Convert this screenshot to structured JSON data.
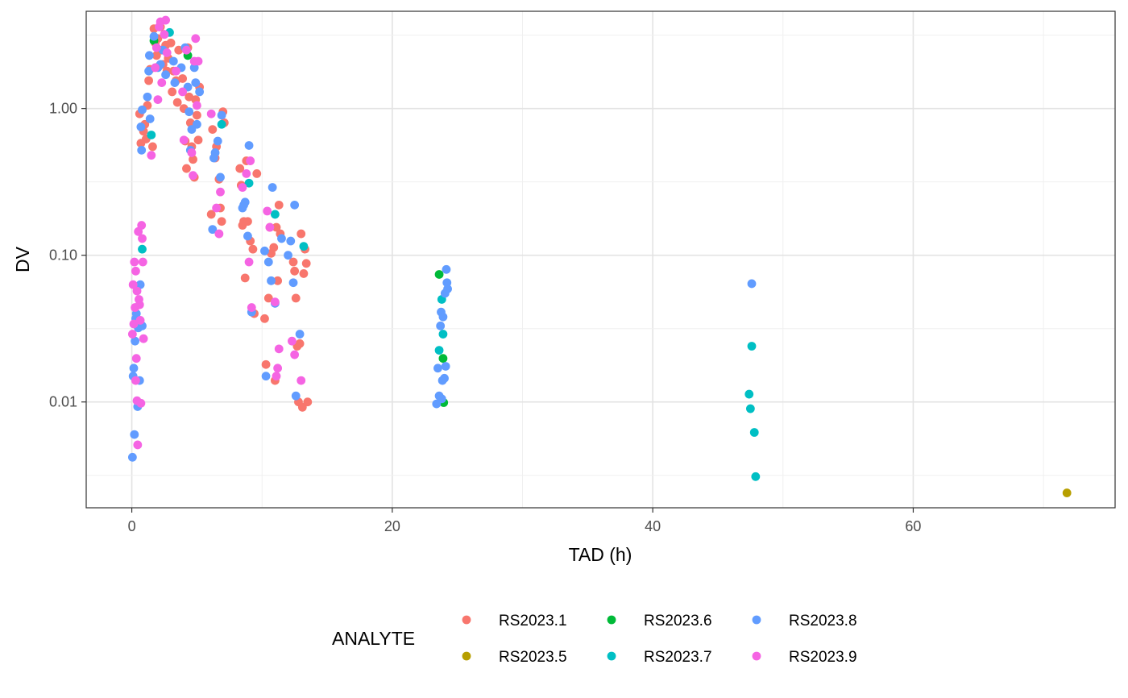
{
  "chart_data": {
    "type": "scatter",
    "xlabel": "TAD (h)",
    "ylabel": "DV",
    "y_scale": "log10",
    "xlim": [
      -3.5,
      75.5
    ],
    "ylim": [
      0.0019,
      4.6
    ],
    "x_ticks": [
      0,
      20,
      40,
      60
    ],
    "x_tick_labels": [
      "0",
      "20",
      "40",
      "60"
    ],
    "y_ticks": [
      0.01,
      0.1,
      1
    ],
    "y_tick_labels": [
      "0.01",
      "0.10",
      "1.00"
    ],
    "grid": true,
    "legend_title": "ANALYTE",
    "legend_position": "bottom",
    "series": [
      {
        "name": "RS2023.1",
        "color": "#F8766D",
        "points": [
          [
            0.6,
            0.92
          ],
          [
            0.7,
            0.58
          ],
          [
            0.9,
            0.7
          ],
          [
            1.0,
            0.78
          ],
          [
            1.1,
            0.62
          ],
          [
            1.2,
            1.05
          ],
          [
            1.3,
            1.55
          ],
          [
            1.4,
            1.85
          ],
          [
            1.6,
            0.55
          ],
          [
            1.7,
            3.5
          ],
          [
            1.8,
            2.8
          ],
          [
            1.9,
            2.3
          ],
          [
            2.0,
            3.0
          ],
          [
            2.1,
            1.95
          ],
          [
            2.2,
            3.6
          ],
          [
            2.3,
            2.5
          ],
          [
            2.4,
            2.0
          ],
          [
            2.5,
            3.2
          ],
          [
            2.6,
            2.7
          ],
          [
            2.7,
            1.8
          ],
          [
            2.8,
            2.2
          ],
          [
            3.0,
            2.8
          ],
          [
            3.1,
            1.3
          ],
          [
            3.2,
            1.8
          ],
          [
            3.4,
            1.55
          ],
          [
            3.5,
            1.1
          ],
          [
            3.6,
            2.5
          ],
          [
            3.9,
            1.6
          ],
          [
            4.0,
            1.0
          ],
          [
            4.1,
            0.6
          ],
          [
            4.2,
            0.39
          ],
          [
            4.3,
            2.6
          ],
          [
            4.4,
            1.2
          ],
          [
            4.5,
            0.8
          ],
          [
            4.6,
            0.55
          ],
          [
            4.7,
            0.45
          ],
          [
            4.8,
            0.34
          ],
          [
            4.9,
            1.15
          ],
          [
            5.0,
            0.9
          ],
          [
            5.1,
            0.61
          ],
          [
            5.2,
            1.4
          ],
          [
            6.1,
            0.19
          ],
          [
            6.2,
            0.72
          ],
          [
            6.4,
            0.46
          ],
          [
            6.5,
            0.55
          ],
          [
            6.7,
            0.33
          ],
          [
            6.8,
            0.21
          ],
          [
            6.9,
            0.17
          ],
          [
            7.0,
            0.95
          ],
          [
            7.1,
            0.8
          ],
          [
            8.3,
            0.39
          ],
          [
            8.4,
            0.3
          ],
          [
            8.5,
            0.16
          ],
          [
            8.6,
            0.17
          ],
          [
            8.7,
            0.07
          ],
          [
            8.8,
            0.44
          ],
          [
            8.9,
            0.17
          ],
          [
            9.1,
            0.125
          ],
          [
            9.3,
            0.11
          ],
          [
            9.4,
            0.04
          ],
          [
            9.6,
            0.36
          ],
          [
            10.2,
            0.037
          ],
          [
            10.3,
            0.018
          ],
          [
            10.5,
            0.051
          ],
          [
            10.6,
            0.155
          ],
          [
            10.7,
            0.103
          ],
          [
            10.9,
            0.113
          ],
          [
            11.0,
            0.014
          ],
          [
            11.1,
            0.155
          ],
          [
            11.2,
            0.067
          ],
          [
            11.3,
            0.22
          ],
          [
            11.4,
            0.14
          ],
          [
            12.4,
            0.09
          ],
          [
            12.5,
            0.078
          ],
          [
            12.6,
            0.051
          ],
          [
            12.7,
            0.024
          ],
          [
            12.8,
            0.01
          ],
          [
            12.9,
            0.025
          ],
          [
            13.0,
            0.14
          ],
          [
            13.1,
            0.0092
          ],
          [
            13.2,
            0.075
          ],
          [
            13.3,
            0.11
          ],
          [
            13.4,
            0.088
          ],
          [
            13.5,
            0.01
          ]
        ]
      },
      {
        "name": "RS2023.5",
        "color": "#B79F00",
        "points": [
          [
            71.8,
            0.0024
          ]
        ]
      },
      {
        "name": "RS2023.6",
        "color": "#00BA38",
        "points": [
          [
            1.7,
            2.9
          ],
          [
            4.3,
            2.3
          ],
          [
            23.6,
            0.074
          ],
          [
            23.9,
            0.0198
          ],
          [
            23.95,
            0.0099
          ]
        ]
      },
      {
        "name": "RS2023.7",
        "color": "#00BFC4",
        "points": [
          [
            0.8,
            0.11
          ],
          [
            1.5,
            0.66
          ],
          [
            2.9,
            3.3
          ],
          [
            6.9,
            0.78
          ],
          [
            9.0,
            0.31
          ],
          [
            11.0,
            0.19
          ],
          [
            13.2,
            0.115
          ],
          [
            23.6,
            0.0225
          ],
          [
            23.8,
            0.05
          ],
          [
            23.9,
            0.029
          ],
          [
            47.4,
            0.0113
          ],
          [
            47.5,
            0.009
          ],
          [
            47.6,
            0.024
          ],
          [
            47.8,
            0.0062
          ],
          [
            47.9,
            0.0031
          ]
        ]
      },
      {
        "name": "RS2023.8",
        "color": "#619CFF",
        "points": [
          [
            0.05,
            0.0042
          ],
          [
            0.1,
            0.015
          ],
          [
            0.15,
            0.017
          ],
          [
            0.2,
            0.006
          ],
          [
            0.25,
            0.026
          ],
          [
            0.3,
            0.037
          ],
          [
            0.35,
            0.04
          ],
          [
            0.45,
            0.0093
          ],
          [
            0.5,
            0.032
          ],
          [
            0.6,
            0.014
          ],
          [
            0.65,
            0.063
          ],
          [
            0.8,
            0.033
          ],
          [
            0.7,
            0.75
          ],
          [
            0.75,
            0.52
          ],
          [
            0.8,
            0.98
          ],
          [
            1.2,
            1.2
          ],
          [
            1.3,
            1.8
          ],
          [
            1.35,
            2.3
          ],
          [
            1.4,
            0.85
          ],
          [
            1.7,
            3.1
          ],
          [
            2.0,
            1.9
          ],
          [
            2.2,
            2.0
          ],
          [
            2.4,
            2.5
          ],
          [
            2.6,
            1.7
          ],
          [
            3.2,
            2.1
          ],
          [
            3.3,
            1.5
          ],
          [
            3.8,
            1.9
          ],
          [
            4.1,
            2.6
          ],
          [
            4.3,
            1.4
          ],
          [
            4.4,
            0.95
          ],
          [
            4.5,
            0.52
          ],
          [
            4.6,
            0.72
          ],
          [
            4.8,
            1.9
          ],
          [
            4.9,
            1.5
          ],
          [
            5.0,
            0.78
          ],
          [
            5.2,
            1.3
          ],
          [
            6.2,
            0.15
          ],
          [
            6.3,
            0.46
          ],
          [
            6.4,
            0.5
          ],
          [
            6.6,
            0.6
          ],
          [
            6.8,
            0.34
          ],
          [
            6.9,
            0.9
          ],
          [
            8.5,
            0.21
          ],
          [
            8.6,
            0.22
          ],
          [
            8.7,
            0.23
          ],
          [
            8.9,
            0.135
          ],
          [
            9.0,
            0.56
          ],
          [
            9.2,
            0.041
          ],
          [
            10.2,
            0.107
          ],
          [
            10.3,
            0.015
          ],
          [
            10.5,
            0.09
          ],
          [
            10.7,
            0.067
          ],
          [
            10.8,
            0.29
          ],
          [
            11.0,
            0.047
          ],
          [
            11.5,
            0.13
          ],
          [
            12.0,
            0.1
          ],
          [
            12.2,
            0.125
          ],
          [
            12.4,
            0.065
          ],
          [
            12.5,
            0.22
          ],
          [
            12.6,
            0.011
          ],
          [
            12.9,
            0.029
          ],
          [
            23.4,
            0.0097
          ],
          [
            23.5,
            0.017
          ],
          [
            23.6,
            0.011
          ],
          [
            23.7,
            0.033
          ],
          [
            23.75,
            0.041
          ],
          [
            23.8,
            0.0105
          ],
          [
            23.85,
            0.014
          ],
          [
            23.9,
            0.038
          ],
          [
            24.0,
            0.0145
          ],
          [
            24.05,
            0.055
          ],
          [
            24.1,
            0.0175
          ],
          [
            24.15,
            0.08
          ],
          [
            24.2,
            0.065
          ],
          [
            24.25,
            0.059
          ],
          [
            47.6,
            0.064
          ]
        ]
      },
      {
        "name": "RS2023.9",
        "color": "#F564E3",
        "points": [
          [
            0.05,
            0.029
          ],
          [
            0.1,
            0.063
          ],
          [
            0.15,
            0.034
          ],
          [
            0.2,
            0.09
          ],
          [
            0.25,
            0.044
          ],
          [
            0.3,
            0.078
          ],
          [
            0.35,
            0.0198
          ],
          [
            0.4,
            0.0102
          ],
          [
            0.45,
            0.0051
          ],
          [
            0.5,
            0.145
          ],
          [
            0.55,
            0.05
          ],
          [
            0.6,
            0.046
          ],
          [
            0.65,
            0.036
          ],
          [
            0.7,
            0.0098
          ],
          [
            0.75,
            0.16
          ],
          [
            0.8,
            0.13
          ],
          [
            0.85,
            0.09
          ],
          [
            0.9,
            0.027
          ],
          [
            0.3,
            0.014
          ],
          [
            0.4,
            0.057
          ],
          [
            1.5,
            0.48
          ],
          [
            1.8,
            1.9
          ],
          [
            1.9,
            2.6
          ],
          [
            2.0,
            1.15
          ],
          [
            2.1,
            3.6
          ],
          [
            2.2,
            3.9
          ],
          [
            2.3,
            1.5
          ],
          [
            2.5,
            3.2
          ],
          [
            2.6,
            4.0
          ],
          [
            2.7,
            2.4
          ],
          [
            3.4,
            1.8
          ],
          [
            3.9,
            1.3
          ],
          [
            4.0,
            0.61
          ],
          [
            4.2,
            2.5
          ],
          [
            4.6,
            0.5
          ],
          [
            4.7,
            0.35
          ],
          [
            4.8,
            2.1
          ],
          [
            4.9,
            3.0
          ],
          [
            5.0,
            1.05
          ],
          [
            5.1,
            2.1
          ],
          [
            6.1,
            0.92
          ],
          [
            6.5,
            0.21
          ],
          [
            6.7,
            0.14
          ],
          [
            6.8,
            0.27
          ],
          [
            8.5,
            0.29
          ],
          [
            8.8,
            0.36
          ],
          [
            9.0,
            0.09
          ],
          [
            9.1,
            0.44
          ],
          [
            9.2,
            0.044
          ],
          [
            10.4,
            0.2
          ],
          [
            10.6,
            0.155
          ],
          [
            11.0,
            0.048
          ],
          [
            11.1,
            0.015
          ],
          [
            11.2,
            0.017
          ],
          [
            11.3,
            0.023
          ],
          [
            12.3,
            0.026
          ],
          [
            12.5,
            0.021
          ],
          [
            13.0,
            0.014
          ]
        ]
      }
    ]
  }
}
